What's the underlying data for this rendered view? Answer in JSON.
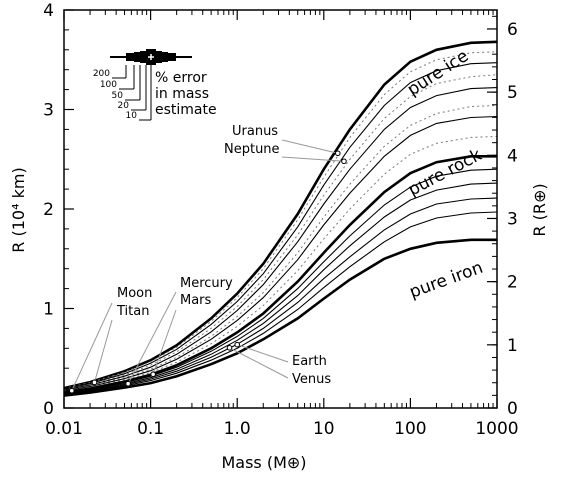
{
  "chart_data": {
    "type": "line",
    "xscale": "log",
    "xlim": [
      0.01,
      1000
    ],
    "ylim": [
      0,
      4
    ],
    "ylim_right": [
      0,
      6.3
    ],
    "xlabel": "Mass (M⊕)",
    "ylabel": "R (10⁴ km)",
    "ylabel_right": "R (R⊕)",
    "x_ticks": [
      {
        "value": 0.01,
        "label": "0.01"
      },
      {
        "value": 0.1,
        "label": "0.1"
      },
      {
        "value": 1,
        "label": "1.0"
      },
      {
        "value": 10,
        "label": "10"
      },
      {
        "value": 100,
        "label": "100"
      },
      {
        "value": 1000,
        "label": "1000"
      }
    ],
    "y_ticks": [
      {
        "value": 0,
        "label": "0"
      },
      {
        "value": 1,
        "label": "1"
      },
      {
        "value": 2,
        "label": "2"
      },
      {
        "value": 3,
        "label": "3"
      },
      {
        "value": 4,
        "label": "4"
      }
    ],
    "y_right_ticks": [
      {
        "value": 0,
        "label": "0"
      },
      {
        "value": 1,
        "label": "1"
      },
      {
        "value": 2,
        "label": "2"
      },
      {
        "value": 3,
        "label": "3"
      },
      {
        "value": 4,
        "label": "4"
      },
      {
        "value": 5,
        "label": "5"
      },
      {
        "value": 6,
        "label": "6"
      }
    ],
    "grid": false,
    "x_mass": [
      0.01,
      0.02,
      0.05,
      0.1,
      0.2,
      0.5,
      1,
      2,
      5,
      10,
      20,
      50,
      100,
      200,
      500,
      1000
    ],
    "series": [
      {
        "name": "pure ice",
        "style": "thick",
        "values": [
          0.2,
          0.26,
          0.37,
          0.48,
          0.63,
          0.9,
          1.15,
          1.45,
          1.95,
          2.4,
          2.8,
          3.25,
          3.48,
          3.6,
          3.67,
          3.68
        ]
      },
      {
        "style": "dotted",
        "values": [
          0.195,
          0.255,
          0.36,
          0.465,
          0.61,
          0.87,
          1.11,
          1.4,
          1.89,
          2.32,
          2.72,
          3.15,
          3.38,
          3.5,
          3.57,
          3.58
        ]
      },
      {
        "style": "thin",
        "values": [
          0.19,
          0.245,
          0.345,
          0.45,
          0.59,
          0.84,
          1.07,
          1.35,
          1.82,
          2.24,
          2.62,
          3.04,
          3.27,
          3.39,
          3.46,
          3.47
        ]
      },
      {
        "style": "dotted",
        "values": [
          0.185,
          0.237,
          0.333,
          0.43,
          0.565,
          0.8,
          1.02,
          1.29,
          1.74,
          2.14,
          2.5,
          2.91,
          3.13,
          3.26,
          3.33,
          3.35
        ]
      },
      {
        "style": "thin",
        "values": [
          0.18,
          0.23,
          0.32,
          0.41,
          0.54,
          0.765,
          0.98,
          1.24,
          1.67,
          2.05,
          2.4,
          2.8,
          3.02,
          3.14,
          3.21,
          3.22
        ]
      },
      {
        "style": "dotted",
        "values": [
          0.175,
          0.222,
          0.305,
          0.39,
          0.51,
          0.72,
          0.92,
          1.16,
          1.56,
          1.92,
          2.25,
          2.63,
          2.84,
          2.96,
          3.03,
          3.04
        ]
      },
      {
        "style": "thin",
        "values": [
          0.17,
          0.215,
          0.295,
          0.375,
          0.49,
          0.69,
          0.88,
          1.11,
          1.49,
          1.84,
          2.16,
          2.53,
          2.74,
          2.86,
          2.92,
          2.93
        ]
      },
      {
        "style": "dotted",
        "values": [
          0.165,
          0.207,
          0.282,
          0.355,
          0.46,
          0.645,
          0.82,
          1.03,
          1.38,
          1.7,
          2.0,
          2.35,
          2.55,
          2.66,
          2.72,
          2.73
        ]
      },
      {
        "name": "pure rock",
        "style": "thick",
        "values": [
          0.155,
          0.195,
          0.265,
          0.335,
          0.43,
          0.6,
          0.76,
          0.95,
          1.27,
          1.56,
          1.84,
          2.17,
          2.36,
          2.47,
          2.53,
          2.53
        ]
      },
      {
        "style": "thin",
        "values": [
          0.15,
          0.188,
          0.254,
          0.32,
          0.41,
          0.57,
          0.72,
          0.9,
          1.2,
          1.47,
          1.73,
          2.04,
          2.22,
          2.33,
          2.39,
          2.4
        ]
      },
      {
        "style": "thin",
        "values": [
          0.145,
          0.181,
          0.243,
          0.305,
          0.39,
          0.54,
          0.68,
          0.85,
          1.13,
          1.39,
          1.63,
          1.92,
          2.09,
          2.19,
          2.25,
          2.26
        ]
      },
      {
        "style": "thin",
        "values": [
          0.14,
          0.174,
          0.232,
          0.29,
          0.37,
          0.51,
          0.64,
          0.8,
          1.06,
          1.3,
          1.52,
          1.79,
          1.95,
          2.05,
          2.1,
          2.11
        ]
      },
      {
        "style": "thin",
        "values": [
          0.135,
          0.167,
          0.222,
          0.275,
          0.35,
          0.48,
          0.6,
          0.75,
          0.99,
          1.21,
          1.42,
          1.67,
          1.82,
          1.91,
          1.96,
          1.97
        ]
      },
      {
        "name": "pure iron",
        "style": "thick",
        "values": [
          0.125,
          0.155,
          0.205,
          0.25,
          0.32,
          0.44,
          0.55,
          0.69,
          0.9,
          1.1,
          1.29,
          1.5,
          1.6,
          1.66,
          1.69,
          1.69
        ]
      }
    ],
    "bodies": [
      {
        "name": "Moon",
        "mass": 0.0123,
        "radius": 0.174
      },
      {
        "name": "Titan",
        "mass": 0.0225,
        "radius": 0.258
      },
      {
        "name": "Mercury",
        "mass": 0.055,
        "radius": 0.244
      },
      {
        "name": "Mars",
        "mass": 0.107,
        "radius": 0.339
      },
      {
        "name": "Venus",
        "mass": 0.815,
        "radius": 0.605
      },
      {
        "name": "Earth",
        "mass": 1.0,
        "radius": 0.637
      },
      {
        "name": "Uranus",
        "mass": 14.5,
        "radius": 2.56
      },
      {
        "name": "Neptune",
        "mass": 17.1,
        "radius": 2.48
      }
    ],
    "inset": {
      "levels": [
        "200",
        "100",
        "50",
        "20",
        "10"
      ],
      "caption": [
        "% error",
        "in mass",
        "estimate"
      ]
    }
  }
}
